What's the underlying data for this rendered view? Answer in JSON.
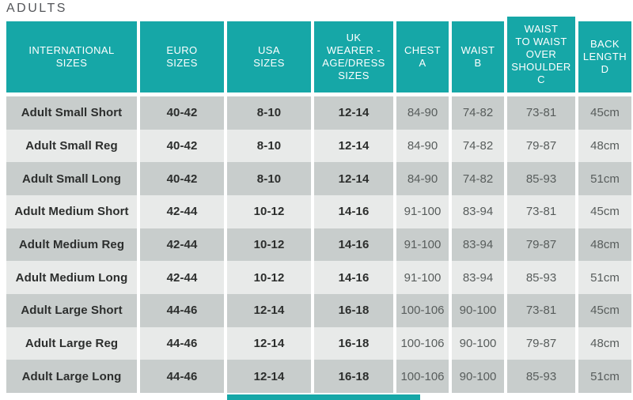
{
  "title": "ADULTS",
  "theme": {
    "teal": "#16a7a7",
    "row_dark": "#c8cdcc",
    "row_light": "#e8eae9",
    "header_text_color": "#ffffff",
    "bold_text_color": "#2c2e2d",
    "regular_text_color": "#585d5c",
    "title_text_color": "#54565a"
  },
  "table": {
    "columns": [
      {
        "id": "international",
        "label": "INTERNATIONAL\nSIZES",
        "bold_values": true,
        "tall_header": false
      },
      {
        "id": "euro",
        "label": "EURO\nSIZES",
        "bold_values": true,
        "tall_header": false
      },
      {
        "id": "usa",
        "label": "USA\nSIZES",
        "bold_values": true,
        "tall_header": false
      },
      {
        "id": "uk",
        "label": "UK\nWEARER -\nAGE/DRESS\nSIZES",
        "bold_values": true,
        "tall_header": false
      },
      {
        "id": "chest",
        "label": "CHEST\nA",
        "bold_values": false,
        "tall_header": false
      },
      {
        "id": "waist",
        "label": "WAIST\nB",
        "bold_values": false,
        "tall_header": false
      },
      {
        "id": "waist_to_waist",
        "label": "WAIST\nTO WAIST\nOVER\nSHOULDER\nC",
        "bold_values": false,
        "tall_header": true
      },
      {
        "id": "back_length",
        "label": "BACK\nLENGTH\nD",
        "bold_values": false,
        "tall_header": false
      }
    ],
    "rows": [
      {
        "shade": "dark",
        "cells": [
          "Adult Small Short",
          "40-42",
          "8-10",
          "12-14",
          "84-90",
          "74-82",
          "73-81",
          "45cm"
        ]
      },
      {
        "shade": "light",
        "cells": [
          "Adult Small Reg",
          "40-42",
          "8-10",
          "12-14",
          "84-90",
          "74-82",
          "79-87",
          "48cm"
        ]
      },
      {
        "shade": "dark",
        "cells": [
          "Adult Small Long",
          "40-42",
          "8-10",
          "12-14",
          "84-90",
          "74-82",
          "85-93",
          "51cm"
        ]
      },
      {
        "shade": "light",
        "cells": [
          "Adult Medium Short",
          "42-44",
          "10-12",
          "14-16",
          "91-100",
          "83-94",
          "73-81",
          "45cm"
        ]
      },
      {
        "shade": "dark",
        "cells": [
          "Adult Medium Reg",
          "42-44",
          "10-12",
          "14-16",
          "91-100",
          "83-94",
          "79-87",
          "48cm"
        ]
      },
      {
        "shade": "light",
        "cells": [
          "Adult Medium Long",
          "42-44",
          "10-12",
          "14-16",
          "91-100",
          "83-94",
          "85-93",
          "51cm"
        ]
      },
      {
        "shade": "dark",
        "cells": [
          "Adult Large Short",
          "44-46",
          "12-14",
          "16-18",
          "100-106",
          "90-100",
          "73-81",
          "45cm"
        ]
      },
      {
        "shade": "light",
        "cells": [
          "Adult Large Reg",
          "44-46",
          "12-14",
          "16-18",
          "100-106",
          "90-100",
          "79-87",
          "48cm"
        ]
      },
      {
        "shade": "dark",
        "cells": [
          "Adult Large Long",
          "44-46",
          "12-14",
          "16-18",
          "100-106",
          "90-100",
          "85-93",
          "51cm"
        ]
      }
    ]
  }
}
